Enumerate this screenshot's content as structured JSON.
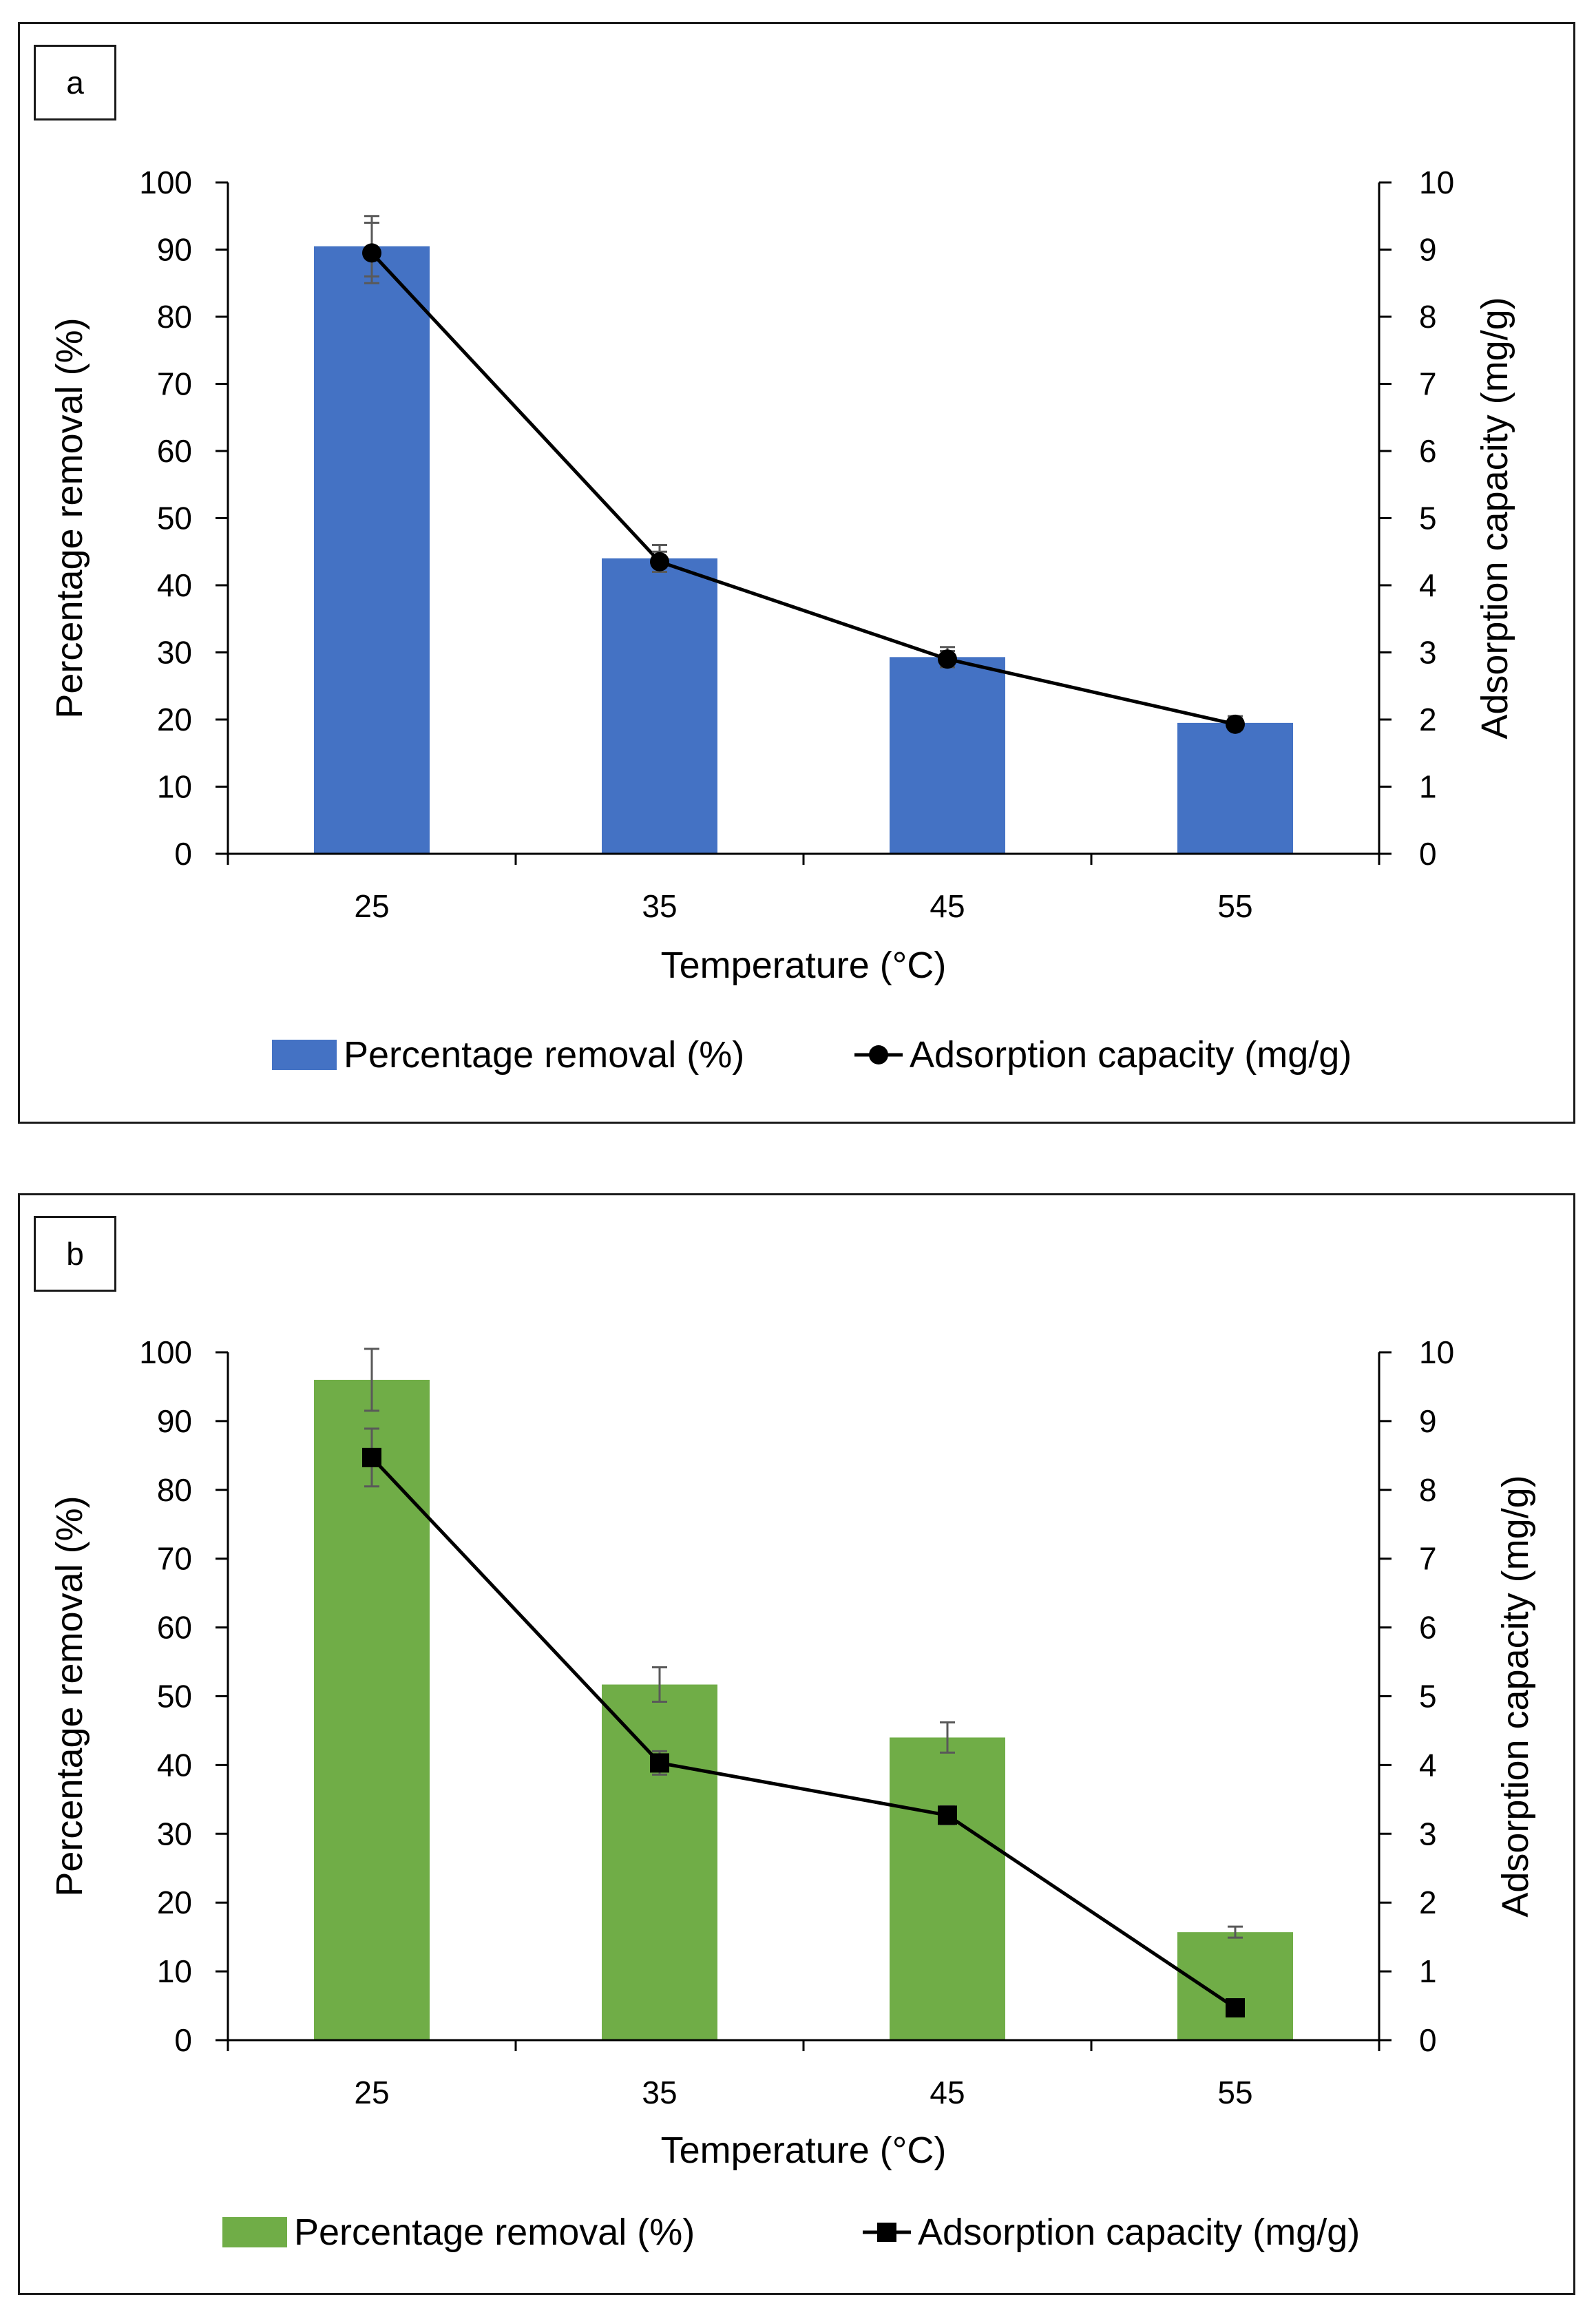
{
  "chart_data": [
    {
      "panel_label": "a",
      "type": "bar",
      "xlabel": "Temperature (°C)",
      "ylabel": "Percentage removal (%)",
      "y2label": "Adsorption capacity (mg/g)",
      "categories": [
        "25",
        "35",
        "45",
        "55"
      ],
      "ylim": [
        0,
        100
      ],
      "y2lim": [
        0,
        10
      ],
      "yticks": [
        "0",
        "10",
        "20",
        "30",
        "40",
        "50",
        "60",
        "70",
        "80",
        "90",
        "100"
      ],
      "y2ticks": [
        "0",
        "1",
        "2",
        "3",
        "4",
        "5",
        "6",
        "7",
        "8",
        "9",
        "10"
      ],
      "series": [
        {
          "name": "Percentage removal (%)",
          "kind": "bar",
          "axis": "left",
          "color": "#4472C4",
          "values": [
            90.5,
            44,
            29.3,
            19.5
          ],
          "errors": [
            4.5,
            2,
            1.5,
            1
          ]
        },
        {
          "name": "Adsorption capacity (mg/g)",
          "kind": "line",
          "axis": "right",
          "marker": "circle",
          "color": "#000000",
          "values": [
            8.95,
            4.35,
            2.9,
            1.93
          ],
          "errors": [
            0.45,
            0.15,
            0.12,
            0.08
          ]
        }
      ],
      "legend": [
        "Percentage removal (%)",
        "Adsorption capacity (mg/g)"
      ]
    },
    {
      "panel_label": "b",
      "type": "bar",
      "xlabel": "Temperature (°C)",
      "ylabel": "Percentage removal (%)",
      "y2label": "Adsorption capacity (mg/g)",
      "categories": [
        "25",
        "35",
        "45",
        "55"
      ],
      "ylim": [
        0,
        100
      ],
      "y2lim": [
        0,
        10
      ],
      "yticks": [
        "0",
        "10",
        "20",
        "30",
        "40",
        "50",
        "60",
        "70",
        "80",
        "90",
        "100"
      ],
      "y2ticks": [
        "0",
        "1",
        "2",
        "3",
        "4",
        "5",
        "6",
        "7",
        "8",
        "9",
        "10"
      ],
      "series": [
        {
          "name": "Percentage removal (%)",
          "kind": "bar",
          "axis": "left",
          "color": "#70AD47",
          "values": [
            96,
            51.7,
            44,
            15.7
          ],
          "errors": [
            4.5,
            2.5,
            2.2,
            0.8
          ]
        },
        {
          "name": "Adsorption capacity (mg/g)",
          "kind": "line",
          "axis": "right",
          "marker": "square",
          "color": "#000000",
          "values": [
            8.47,
            4.03,
            3.27,
            0.47
          ],
          "errors": [
            0.42,
            0.17,
            0.13,
            0.05
          ]
        }
      ],
      "legend": [
        "Percentage removal (%)",
        "Adsorption capacity (mg/g)"
      ]
    }
  ]
}
